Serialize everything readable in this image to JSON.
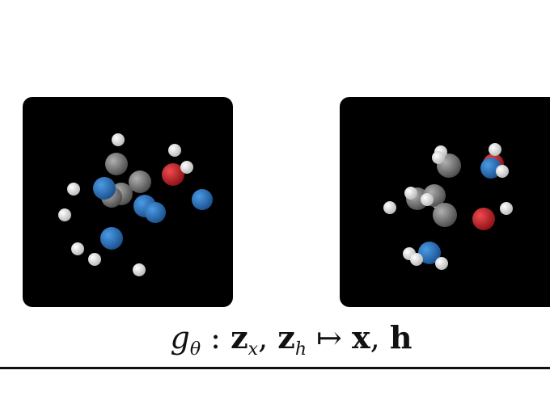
{
  "formula": {
    "g": "g",
    "theta": "θ",
    "colon": " : ",
    "z1": "z",
    "sub_x": "x",
    "comma1": ", ",
    "z2": "z",
    "sub_h": "h",
    "mapsto": " ↦ ",
    "x": "x",
    "comma2": ", ",
    "h": "h"
  },
  "colors": {
    "background": "#000000",
    "hydrogen": "#ffffff",
    "carbon": "#8c8c8c",
    "nitrogen": "#2f79c7",
    "oxygen": "#d0232a"
  }
}
